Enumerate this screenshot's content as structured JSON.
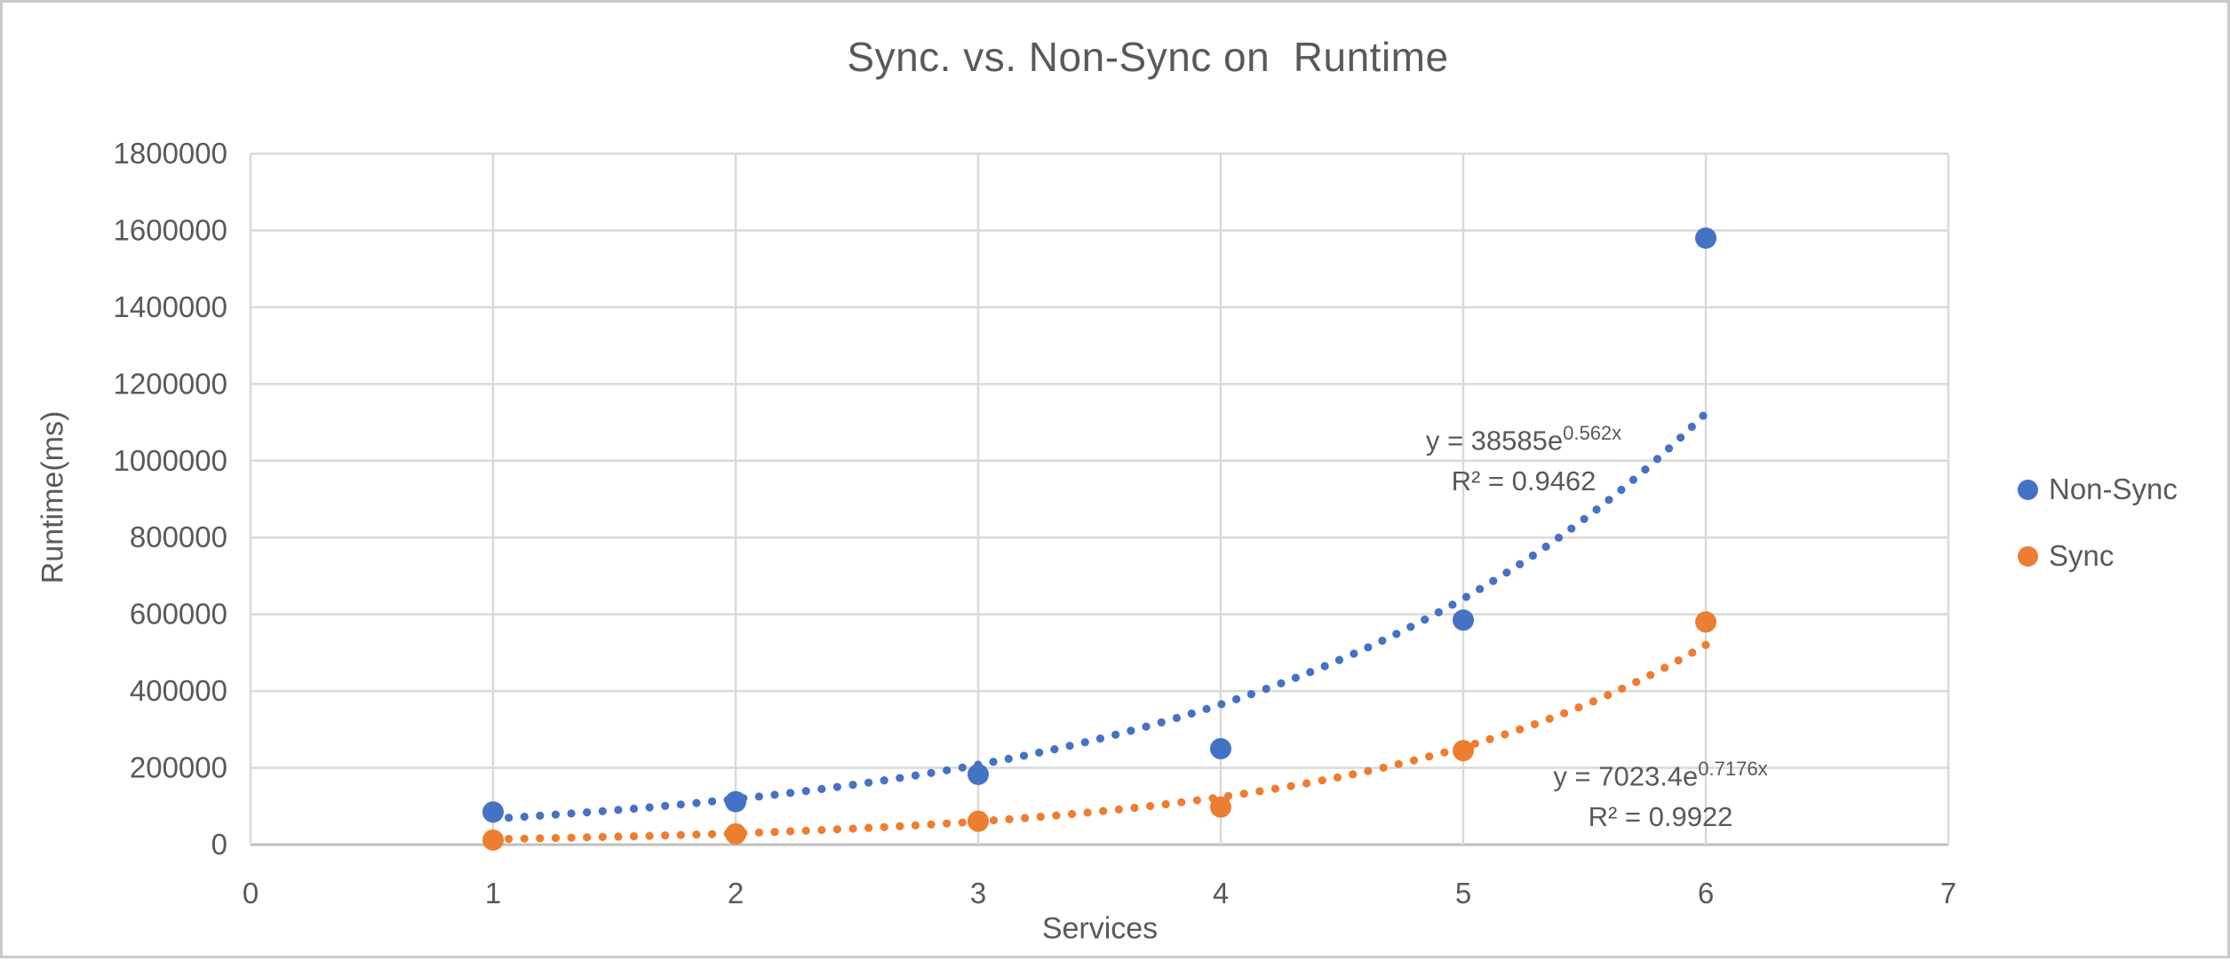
{
  "chart_data": {
    "type": "scatter",
    "title": "Sync. vs. Non-Sync on  Runtime",
    "xlabel": "Services",
    "ylabel": "Runtime(ms)",
    "xlim": [
      0,
      7
    ],
    "ylim": [
      0,
      1800000
    ],
    "x_ticks": [
      "0",
      "1",
      "2",
      "3",
      "4",
      "5",
      "6",
      "7"
    ],
    "y_ticks": [
      "0",
      "200000",
      "400000",
      "600000",
      "800000",
      "1000000",
      "1200000",
      "1400000",
      "1600000",
      "1800000"
    ],
    "grid": true,
    "legend_position": "right",
    "series": [
      {
        "name": "Non-Sync",
        "color": "#4472C4",
        "x": [
          1,
          2,
          3,
          4,
          5,
          6
        ],
        "y": [
          85000,
          112000,
          183000,
          250000,
          585000,
          1580000
        ],
        "trendline": {
          "type": "exponential",
          "a": 38585,
          "b": 0.562,
          "x_range": [
            1,
            6
          ],
          "eq_base": "y = 38585e",
          "eq_exp": "0.562x",
          "r2": "R² = 0.9462"
        }
      },
      {
        "name": "Sync",
        "color": "#ED7D31",
        "x": [
          1,
          2,
          3,
          4,
          5,
          6
        ],
        "y": [
          12000,
          28000,
          61000,
          98000,
          245000,
          580000
        ],
        "trendline": {
          "type": "exponential",
          "a": 7023.4,
          "b": 0.7176,
          "x_range": [
            1,
            6
          ],
          "eq_base": "y = 7023.4e",
          "eq_exp": "0.7176x",
          "r2": "R² = 0.9922"
        }
      }
    ],
    "colors": {
      "text": "#595959",
      "gridline": "#D9D9D9",
      "axis_line": "#BFBFBF"
    }
  }
}
